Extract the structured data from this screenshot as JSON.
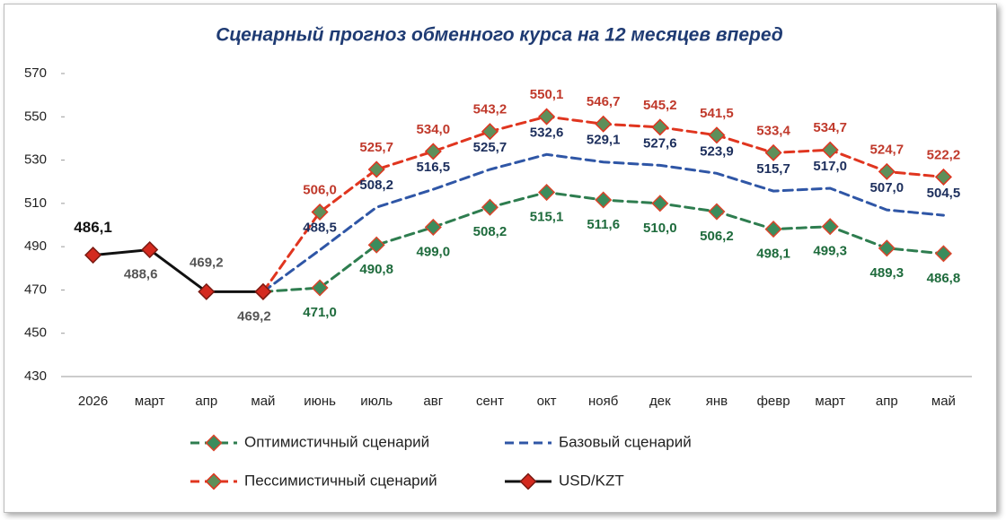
{
  "chart_data": {
    "type": "line",
    "title": "Сценарный прогноз обменного курса на 12 месяцев вперед",
    "categories": [
      "2026",
      "март",
      "апр",
      "май",
      "июнь",
      "июль",
      "авг",
      "сент",
      "окт",
      "нояб",
      "дек",
      "янв",
      "февр",
      "март",
      "апр",
      "май"
    ],
    "ylim": [
      430,
      570
    ],
    "yticks": [
      430,
      450,
      470,
      490,
      510,
      530,
      550,
      570
    ],
    "grid": false,
    "legend": "bottom",
    "series": [
      {
        "name": "Базовый сценарий",
        "color": "#2f56a6",
        "label_color": "#1c2e5c",
        "marker": false,
        "values": [
          null,
          null,
          null,
          469.2,
          488.5,
          508.2,
          516.5,
          525.7,
          532.6,
          529.1,
          527.6,
          523.9,
          515.7,
          517.0,
          507.0,
          504.5
        ],
        "value_labels": [
          null,
          null,
          null,
          null,
          "488,5",
          "508,2",
          "516,5",
          "525,7",
          "532,6",
          "529,1",
          "527,6",
          "523,9",
          "515,7",
          "517,0",
          "507,0",
          "504,5"
        ]
      },
      {
        "name": "Оптимистичный сценарий",
        "color": "#2e7d4f",
        "label_color": "#1e6b3c",
        "marker": true,
        "marker_fill": "#3b8c5c",
        "marker_stroke": "#d9452b",
        "values": [
          null,
          null,
          null,
          469.2,
          471.0,
          490.8,
          499.0,
          508.2,
          515.1,
          511.6,
          510.0,
          506.2,
          498.1,
          499.3,
          489.3,
          486.8
        ],
        "value_labels": [
          null,
          null,
          null,
          null,
          "471,0",
          "490,8",
          "499,0",
          "508,2",
          "515,1",
          "511,6",
          "510,0",
          "506,2",
          "498,1",
          "499,3",
          "489,3",
          "486,8"
        ]
      },
      {
        "name": "Пессимистичный сценарий",
        "color": "#e0351f",
        "label_color": "#c0392b",
        "marker": true,
        "marker_fill": "#5e8f5a",
        "marker_stroke": "#e0351f",
        "values": [
          null,
          null,
          null,
          469.2,
          506.0,
          525.7,
          534.0,
          543.2,
          550.1,
          546.7,
          545.2,
          541.5,
          533.4,
          534.7,
          524.7,
          522.2
        ],
        "value_labels": [
          null,
          null,
          null,
          null,
          "506,0",
          "525,7",
          "534,0",
          "543,2",
          "550,1",
          "546,7",
          "545,2",
          "541,5",
          "533,4",
          "534,7",
          "524,7",
          "522,2"
        ]
      },
      {
        "name": "USD/KZT",
        "color": "#111111",
        "label_color": "#555555",
        "marker": true,
        "marker_fill": "#d42a1f",
        "marker_stroke": "#7a1a12",
        "values": [
          486.1,
          488.6,
          469.2,
          469.2,
          null,
          null,
          null,
          null,
          null,
          null,
          null,
          null,
          null,
          null,
          null,
          null
        ],
        "value_labels": [
          "486,1",
          "488,6",
          "469,2",
          "469,2",
          null,
          null,
          null,
          null,
          null,
          null,
          null,
          null,
          null,
          null,
          null,
          null
        ]
      }
    ]
  }
}
